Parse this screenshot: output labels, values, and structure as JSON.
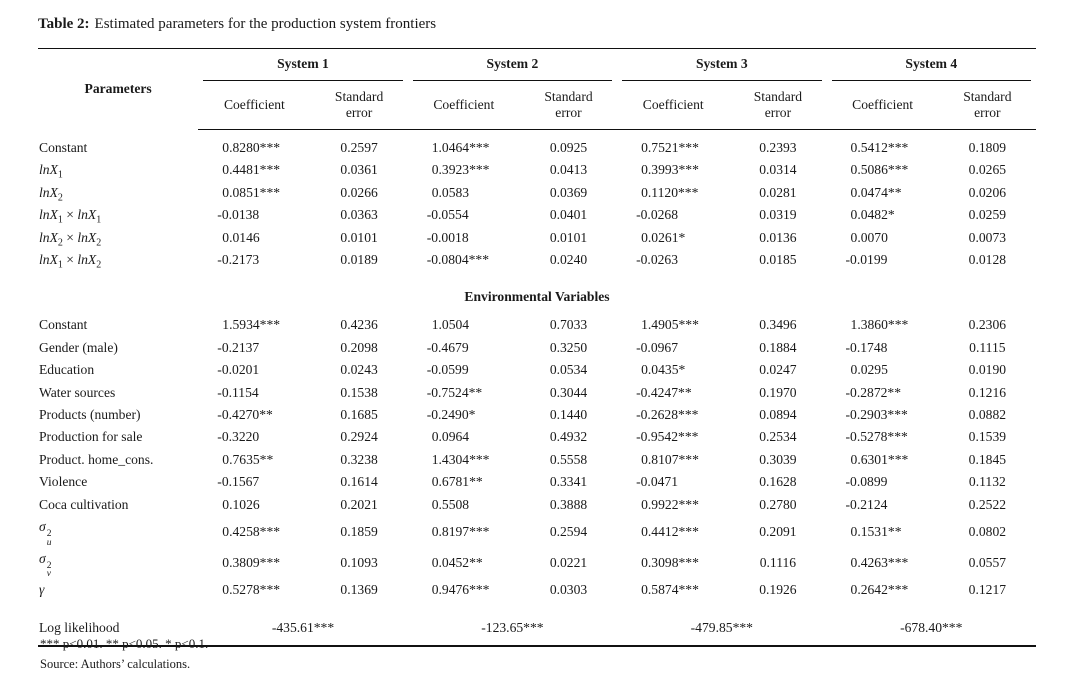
{
  "page": {
    "title_label": "Table 2:",
    "title_text": "Estimated parameters for the production system frontiers"
  },
  "table": {
    "param_header": "Parameters",
    "groups": [
      "System 1",
      "System 2",
      "System 3",
      "System 4"
    ],
    "sub_headers": {
      "coefficient": "Coefficient",
      "standard_error": "Standard error"
    },
    "sections": [
      {
        "heading": null,
        "rows": [
          {
            "label": "Constant",
            "values": [
              "0.8280***",
              "0.2597",
              "1.0464***",
              "0.0925",
              "0.7521***",
              "0.2393",
              "0.5412***",
              "0.1809"
            ]
          },
          {
            "label": [
              {
                "t": "lnX",
                "i": true
              },
              {
                "t": "1",
                "sb": true
              }
            ],
            "values": [
              "0.4481***",
              "0.0361",
              "0.3923***",
              "0.0413",
              "0.3993***",
              "0.0314",
              "0.5086***",
              "0.0265"
            ]
          },
          {
            "label": [
              {
                "t": "lnX",
                "i": true
              },
              {
                "t": "2",
                "sb": true
              }
            ],
            "values": [
              "0.0851***",
              "0.0266",
              "0.0583",
              "0.0369",
              "0.1120***",
              "0.0281",
              "0.0474**",
              "0.0206"
            ]
          },
          {
            "label": [
              {
                "t": "lnX",
                "i": true
              },
              {
                "t": "1",
                "sb": true
              },
              {
                "t": " × "
              },
              {
                "t": "lnX",
                "i": true
              },
              {
                "t": "1",
                "sb": true
              }
            ],
            "values": [
              "-0.0138",
              "0.0363",
              "-0.0554",
              "0.0401",
              "-0.0268",
              "0.0319",
              "0.0482*",
              "0.0259"
            ]
          },
          {
            "label": [
              {
                "t": "lnX",
                "i": true
              },
              {
                "t": "2",
                "sb": true
              },
              {
                "t": " × "
              },
              {
                "t": "lnX",
                "i": true
              },
              {
                "t": "2",
                "sb": true
              }
            ],
            "values": [
              "0.0146",
              "0.0101",
              "-0.0018",
              "0.0101",
              "0.0261*",
              "0.0136",
              "0.0070",
              "0.0073"
            ]
          },
          {
            "label": [
              {
                "t": "lnX",
                "i": true
              },
              {
                "t": "1",
                "sb": true
              },
              {
                "t": " × "
              },
              {
                "t": "lnX",
                "i": true
              },
              {
                "t": "2",
                "sb": true
              }
            ],
            "values": [
              "-0.2173",
              "0.0189",
              "-0.0804***",
              "0.0240",
              "-0.0263",
              "0.0185",
              "-0.0199",
              "0.0128"
            ]
          }
        ]
      },
      {
        "heading": "Environmental Variables",
        "rows": [
          {
            "label": "Constant",
            "values": [
              "1.5934***",
              "0.4236",
              "1.0504",
              "0.7033",
              "1.4905***",
              "0.3496",
              "1.3860***",
              "0.2306"
            ]
          },
          {
            "label": "Gender (male)",
            "values": [
              "-0.2137",
              "0.2098",
              "-0.4679",
              "0.3250",
              "-0.0967",
              "0.1884",
              "-0.1748",
              "0.1115"
            ]
          },
          {
            "label": "Education",
            "values": [
              "-0.0201",
              "0.0243",
              "-0.0599",
              "0.0534",
              "0.0435*",
              "0.0247",
              "0.0295",
              "0.0190"
            ]
          },
          {
            "label": "Water sources",
            "values": [
              "-0.1154",
              "0.1538",
              "-0.7524**",
              "0.3044",
              "-0.4247**",
              "0.1970",
              "-0.2872**",
              "0.1216"
            ]
          },
          {
            "label": "Products (number)",
            "values": [
              "-0.4270**",
              "0.1685",
              "-0.2490*",
              "0.1440",
              "-0.2628***",
              "0.0894",
              "-0.2903***",
              "0.0882"
            ]
          },
          {
            "label": "Production for sale",
            "values": [
              "-0.3220",
              "0.2924",
              "0.0964",
              "0.4932",
              "-0.9542***",
              "0.2534",
              "-0.5278***",
              "0.1539"
            ]
          },
          {
            "label": "Product. home_cons.",
            "values": [
              "0.7635**",
              "0.3238",
              "1.4304***",
              "0.5558",
              "0.8107***",
              "0.3039",
              "0.6301***",
              "0.1845"
            ]
          },
          {
            "label": "Violence",
            "values": [
              "-0.1567",
              "0.1614",
              "0.6781**",
              "0.3341",
              "-0.0471",
              "0.1628",
              "-0.0899",
              "0.1132"
            ]
          },
          {
            "label": "Coca cultivation",
            "values": [
              "0.1026",
              "0.2021",
              "0.5508",
              "0.3888",
              "0.9922***",
              "0.2780",
              "-0.2124",
              "0.2522"
            ]
          },
          {
            "label": [
              {
                "t": "σ",
                "i": true
              },
              {
                "sup": "2",
                "sub": "u"
              }
            ],
            "values": [
              "0.4258***",
              "0.1859",
              "0.8197***",
              "0.2594",
              "0.4412***",
              "0.2091",
              "0.1531**",
              "0.0802"
            ]
          },
          {
            "label": [
              {
                "t": "σ",
                "i": true
              },
              {
                "sup": "2",
                "sub": "v"
              }
            ],
            "values": [
              "0.3809***",
              "0.1093",
              "0.0452**",
              "0.0221",
              "0.3098***",
              "0.1116",
              "0.4263***",
              "0.0557"
            ]
          },
          {
            "label": [
              {
                "t": "γ",
                "i": true
              }
            ],
            "values": [
              "0.5278***",
              "0.1369",
              "0.9476***",
              "0.0303",
              "0.5874***",
              "0.1926",
              "0.2642***",
              "0.1217"
            ]
          }
        ]
      }
    ],
    "summary_row": {
      "label": "Log likelihood",
      "values": [
        "-435.61***",
        "-123.65***",
        "-479.85***",
        "-678.40***"
      ]
    }
  },
  "footnotes": {
    "significance": "*** p<0.01. ** p<0.05. * p<0.1.",
    "source": "Source: Authors’ calculations."
  }
}
